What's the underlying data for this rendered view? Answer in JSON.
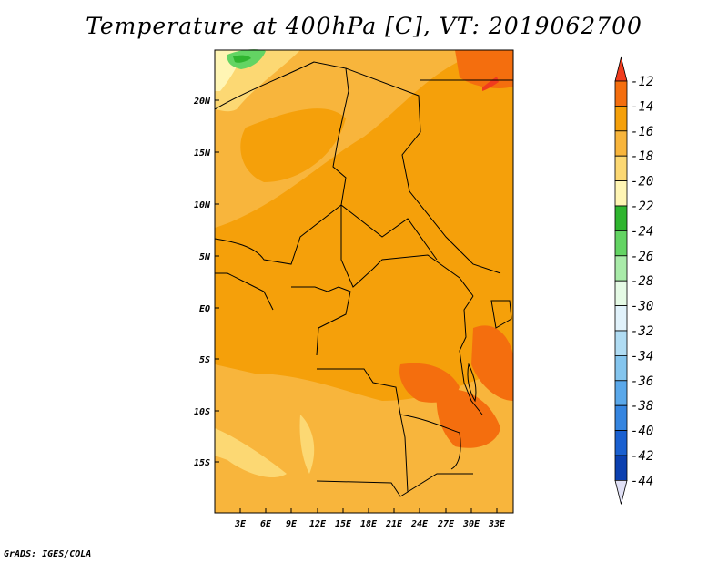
{
  "title": "Temperature at 400hPa [C], VT: 2019062700",
  "credit": "GrADS: IGES/COLA",
  "map": {
    "lat_labels": [
      "20N",
      "15N",
      "10N",
      "5N",
      "EQ",
      "5S",
      "10S",
      "15S"
    ],
    "lon_labels": [
      "3E",
      "6E",
      "9E",
      "12E",
      "15E",
      "18E",
      "21E",
      "24E",
      "27E",
      "30E",
      "33E"
    ]
  },
  "colorbar": {
    "labels": [
      "-12",
      "-14",
      "-16",
      "-18",
      "-20",
      "-22",
      "-24",
      "-26",
      "-28",
      "-30",
      "-32",
      "-34",
      "-36",
      "-38",
      "-40",
      "-42",
      "-44"
    ],
    "colors": [
      "#f03c1e",
      "#f46e0e",
      "#f5a00a",
      "#f8b53c",
      "#fcd873",
      "#fff5b4",
      "#2fb52f",
      "#63d463",
      "#a9eba9",
      "#e5fae5",
      "#e1f2fb",
      "#b0dcf3",
      "#84c5ee",
      "#5aa8ea",
      "#3585e0",
      "#1a60d0",
      "#0b40b0",
      "#0a1a78",
      "#e0e0f5"
    ]
  }
}
